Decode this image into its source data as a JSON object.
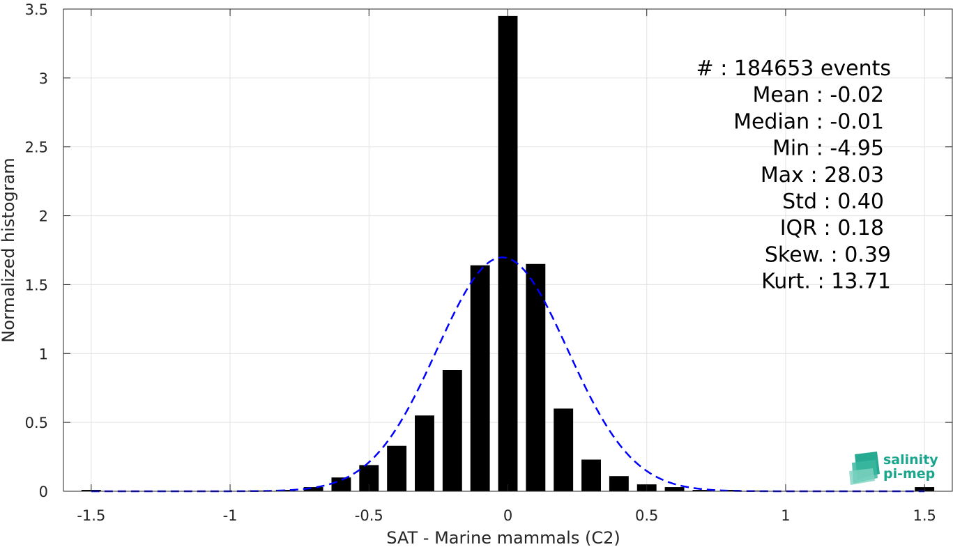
{
  "chart_data": {
    "type": "bar",
    "xlabel": "SAT - Marine mammals (C2)",
    "ylabel": "Normalized histogram",
    "xlim": [
      -1.6,
      1.6
    ],
    "ylim": [
      0,
      3.5
    ],
    "xticks": [
      -1.5,
      -1,
      -0.5,
      0,
      0.5,
      1,
      1.5
    ],
    "xtick_labels": [
      "-1.5",
      "-1",
      "-0.5",
      "0",
      "0.5",
      "1",
      "1.5"
    ],
    "yticks": [
      0,
      0.5,
      1,
      1.5,
      2,
      2.5,
      3,
      3.5
    ],
    "ytick_labels": [
      "0",
      "0.5",
      "1",
      "1.5",
      "2",
      "2.5",
      "3",
      "3.5"
    ],
    "grid": true,
    "bar_color": "#000000",
    "bar_width": 0.07,
    "bins": [
      {
        "x": -1.5,
        "y": 0.01
      },
      {
        "x": -1.4,
        "y": 0.0
      },
      {
        "x": -1.3,
        "y": 0.0
      },
      {
        "x": -1.2,
        "y": 0.0
      },
      {
        "x": -1.1,
        "y": 0.0
      },
      {
        "x": -1.0,
        "y": 0.0
      },
      {
        "x": -0.9,
        "y": 0.005
      },
      {
        "x": -0.8,
        "y": 0.01
      },
      {
        "x": -0.7,
        "y": 0.03
      },
      {
        "x": -0.6,
        "y": 0.1
      },
      {
        "x": -0.5,
        "y": 0.19
      },
      {
        "x": -0.4,
        "y": 0.33
      },
      {
        "x": -0.3,
        "y": 0.55
      },
      {
        "x": -0.2,
        "y": 0.88
      },
      {
        "x": -0.1,
        "y": 1.64
      },
      {
        "x": 0.0,
        "y": 3.45
      },
      {
        "x": 0.1,
        "y": 1.65
      },
      {
        "x": 0.2,
        "y": 0.6
      },
      {
        "x": 0.3,
        "y": 0.23
      },
      {
        "x": 0.4,
        "y": 0.11
      },
      {
        "x": 0.5,
        "y": 0.05
      },
      {
        "x": 0.6,
        "y": 0.03
      },
      {
        "x": 0.7,
        "y": 0.01
      },
      {
        "x": 0.8,
        "y": 0.01
      },
      {
        "x": 0.9,
        "y": 0.005
      },
      {
        "x": 1.0,
        "y": 0.0
      },
      {
        "x": 1.1,
        "y": 0.0
      },
      {
        "x": 1.2,
        "y": 0.0
      },
      {
        "x": 1.3,
        "y": 0.0
      },
      {
        "x": 1.4,
        "y": 0.0
      },
      {
        "x": 1.5,
        "y": 0.03
      }
    ],
    "fit_curve": {
      "type": "gaussian",
      "mean": -0.02,
      "std": 0.235,
      "range": [
        -1.5,
        1.5
      ],
      "color": "#0000ff",
      "style": "dashed"
    },
    "stats": [
      "#  : 184653 events",
      "Mean : -0.02",
      "Median : -0.01",
      "Min : -4.95",
      "Max : 28.03",
      "Std : 0.40",
      "IQR : 0.18",
      "Skew. : 0.39",
      "Kurt. : 13.71"
    ]
  },
  "logo": {
    "line1": "salinity",
    "line2": "pi-mep",
    "color": "#1aa58c"
  }
}
